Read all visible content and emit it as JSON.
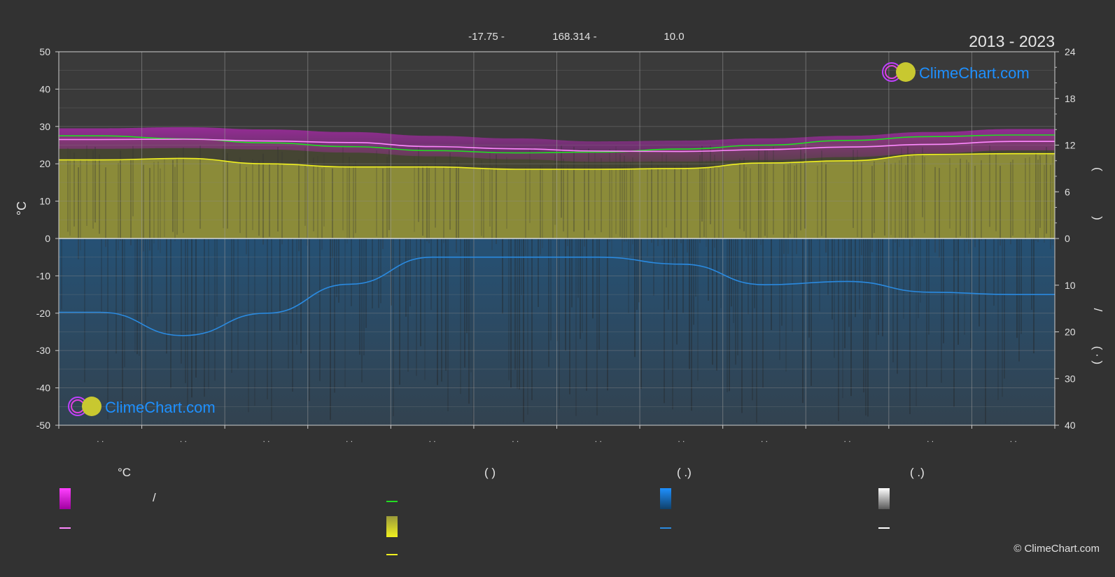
{
  "header": {
    "lat_text": "-17.75 -",
    "lon_text": "168.314 -",
    "elev_text": "10.0",
    "year_range": "2013 - 2023"
  },
  "logo": {
    "text": "ClimeChart.com"
  },
  "copyright": "© ClimeChart.com",
  "colors": {
    "background": "#323232",
    "sunshine_fill": "#9a9a3a",
    "daylight_line": "#22dd22",
    "sunshine_line": "#f0f020",
    "temp_band": "#e020e0",
    "temp_line": "#ff88ff",
    "precip_fill": "#1d5a8c",
    "precip_line": "#2a8ae0",
    "brand": "#1e90ff"
  },
  "chart_data": {
    "type": "area",
    "x_months": [
      1,
      2,
      3,
      4,
      5,
      6,
      7,
      8,
      9,
      10,
      11,
      12
    ],
    "month_tick_labels": [
      ". .",
      ". .",
      ". .",
      ". .",
      ". .",
      ". .",
      ". .",
      ". .",
      ". .",
      ". .",
      ". .",
      ". ."
    ],
    "left_axis": {
      "label": "°C",
      "ticks": [
        50,
        40,
        30,
        20,
        10,
        0,
        -10,
        -20,
        -30,
        -40,
        -50
      ],
      "range": [
        -50,
        50
      ]
    },
    "right_axis_upper": {
      "ticks": [
        24,
        18,
        12,
        6,
        0
      ],
      "range": [
        0,
        24
      ],
      "label_glyphs": [
        "(",
        ")"
      ]
    },
    "right_axis_lower": {
      "ticks": [
        0,
        10,
        20,
        30,
        40
      ],
      "range": [
        0,
        40
      ],
      "label_glyphs": [
        "/",
        "( · )"
      ]
    },
    "series": [
      {
        "key": "daylight",
        "axis": "hours",
        "values": [
          13.2,
          12.8,
          12.3,
          11.8,
          11.3,
          11.0,
          11.1,
          11.5,
          12.0,
          12.6,
          13.1,
          13.3
        ]
      },
      {
        "key": "sunshine",
        "axis": "hours",
        "values": [
          10.1,
          10.3,
          9.6,
          9.2,
          9.2,
          8.9,
          8.9,
          9.0,
          9.7,
          10.0,
          10.8,
          10.9
        ]
      },
      {
        "key": "temp_mean",
        "axis": "celsius",
        "values": [
          26.5,
          26.6,
          26.1,
          25.7,
          24.6,
          24.0,
          23.4,
          23.3,
          23.8,
          24.5,
          25.2,
          26.0
        ]
      },
      {
        "key": "temp_max",
        "axis": "celsius",
        "values": [
          29.5,
          29.8,
          29.2,
          28.5,
          27.5,
          26.8,
          26.0,
          26.2,
          26.8,
          27.5,
          28.5,
          29.3
        ]
      },
      {
        "key": "temp_min",
        "axis": "celsius",
        "values": [
          24.0,
          24.2,
          23.8,
          23.0,
          22.0,
          21.2,
          20.5,
          20.6,
          21.0,
          21.8,
          22.8,
          23.6
        ]
      },
      {
        "key": "precip_mean",
        "axis": "mm",
        "values": [
          15.8,
          20.8,
          16.0,
          9.8,
          4.0,
          4.0,
          4.0,
          5.5,
          9.9,
          9.2,
          11.5,
          12.0
        ]
      }
    ]
  },
  "legend": {
    "col1": {
      "head": "°C",
      "items": [
        "/",
        ""
      ]
    },
    "col2": {
      "head": "(            )",
      "items": [
        "",
        "",
        ""
      ]
    },
    "col3": {
      "head": "(   .)",
      "items": [
        "",
        ""
      ]
    },
    "col4": {
      "head": "(   .)",
      "items": [
        "",
        ""
      ]
    }
  }
}
